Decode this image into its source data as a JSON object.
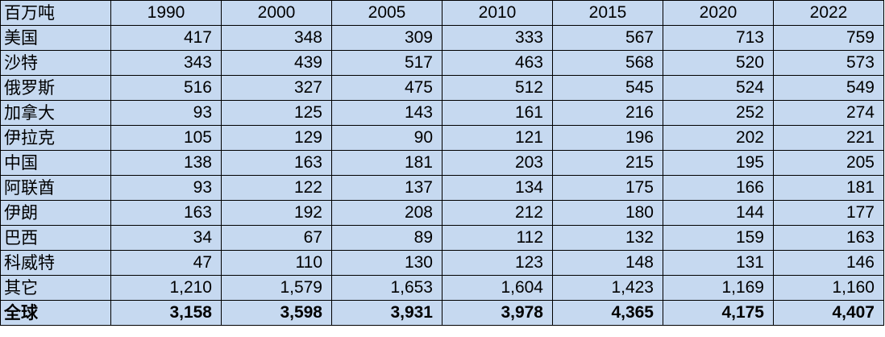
{
  "table": {
    "header": [
      "百万吨",
      "1990",
      "2000",
      "2005",
      "2010",
      "2015",
      "2020",
      "2022"
    ],
    "rows": [
      [
        "美国",
        "417",
        "348",
        "309",
        "333",
        "567",
        "713",
        "759"
      ],
      [
        "沙特",
        "343",
        "439",
        "517",
        "463",
        "568",
        "520",
        "573"
      ],
      [
        "俄罗斯",
        "516",
        "327",
        "475",
        "512",
        "545",
        "524",
        "549"
      ],
      [
        "加拿大",
        "93",
        "125",
        "143",
        "161",
        "216",
        "252",
        "274"
      ],
      [
        "伊拉克",
        "105",
        "129",
        "90",
        "121",
        "196",
        "202",
        "221"
      ],
      [
        "中国",
        "138",
        "163",
        "181",
        "203",
        "215",
        "195",
        "205"
      ],
      [
        "阿联酋",
        "93",
        "122",
        "137",
        "134",
        "175",
        "166",
        "181"
      ],
      [
        "伊朗",
        "163",
        "192",
        "208",
        "212",
        "180",
        "144",
        "177"
      ],
      [
        "巴西",
        "34",
        "67",
        "89",
        "112",
        "132",
        "159",
        "163"
      ],
      [
        "科威特",
        "47",
        "110",
        "130",
        "123",
        "148",
        "131",
        "146"
      ],
      [
        "其它",
        "1,210",
        "1,579",
        "1,653",
        "1,604",
        "1,423",
        "1,169",
        "1,160"
      ],
      [
        "全球",
        "3,158",
        "3,598",
        "3,931",
        "3,978",
        "4,365",
        "4,175",
        "4,407"
      ]
    ]
  }
}
